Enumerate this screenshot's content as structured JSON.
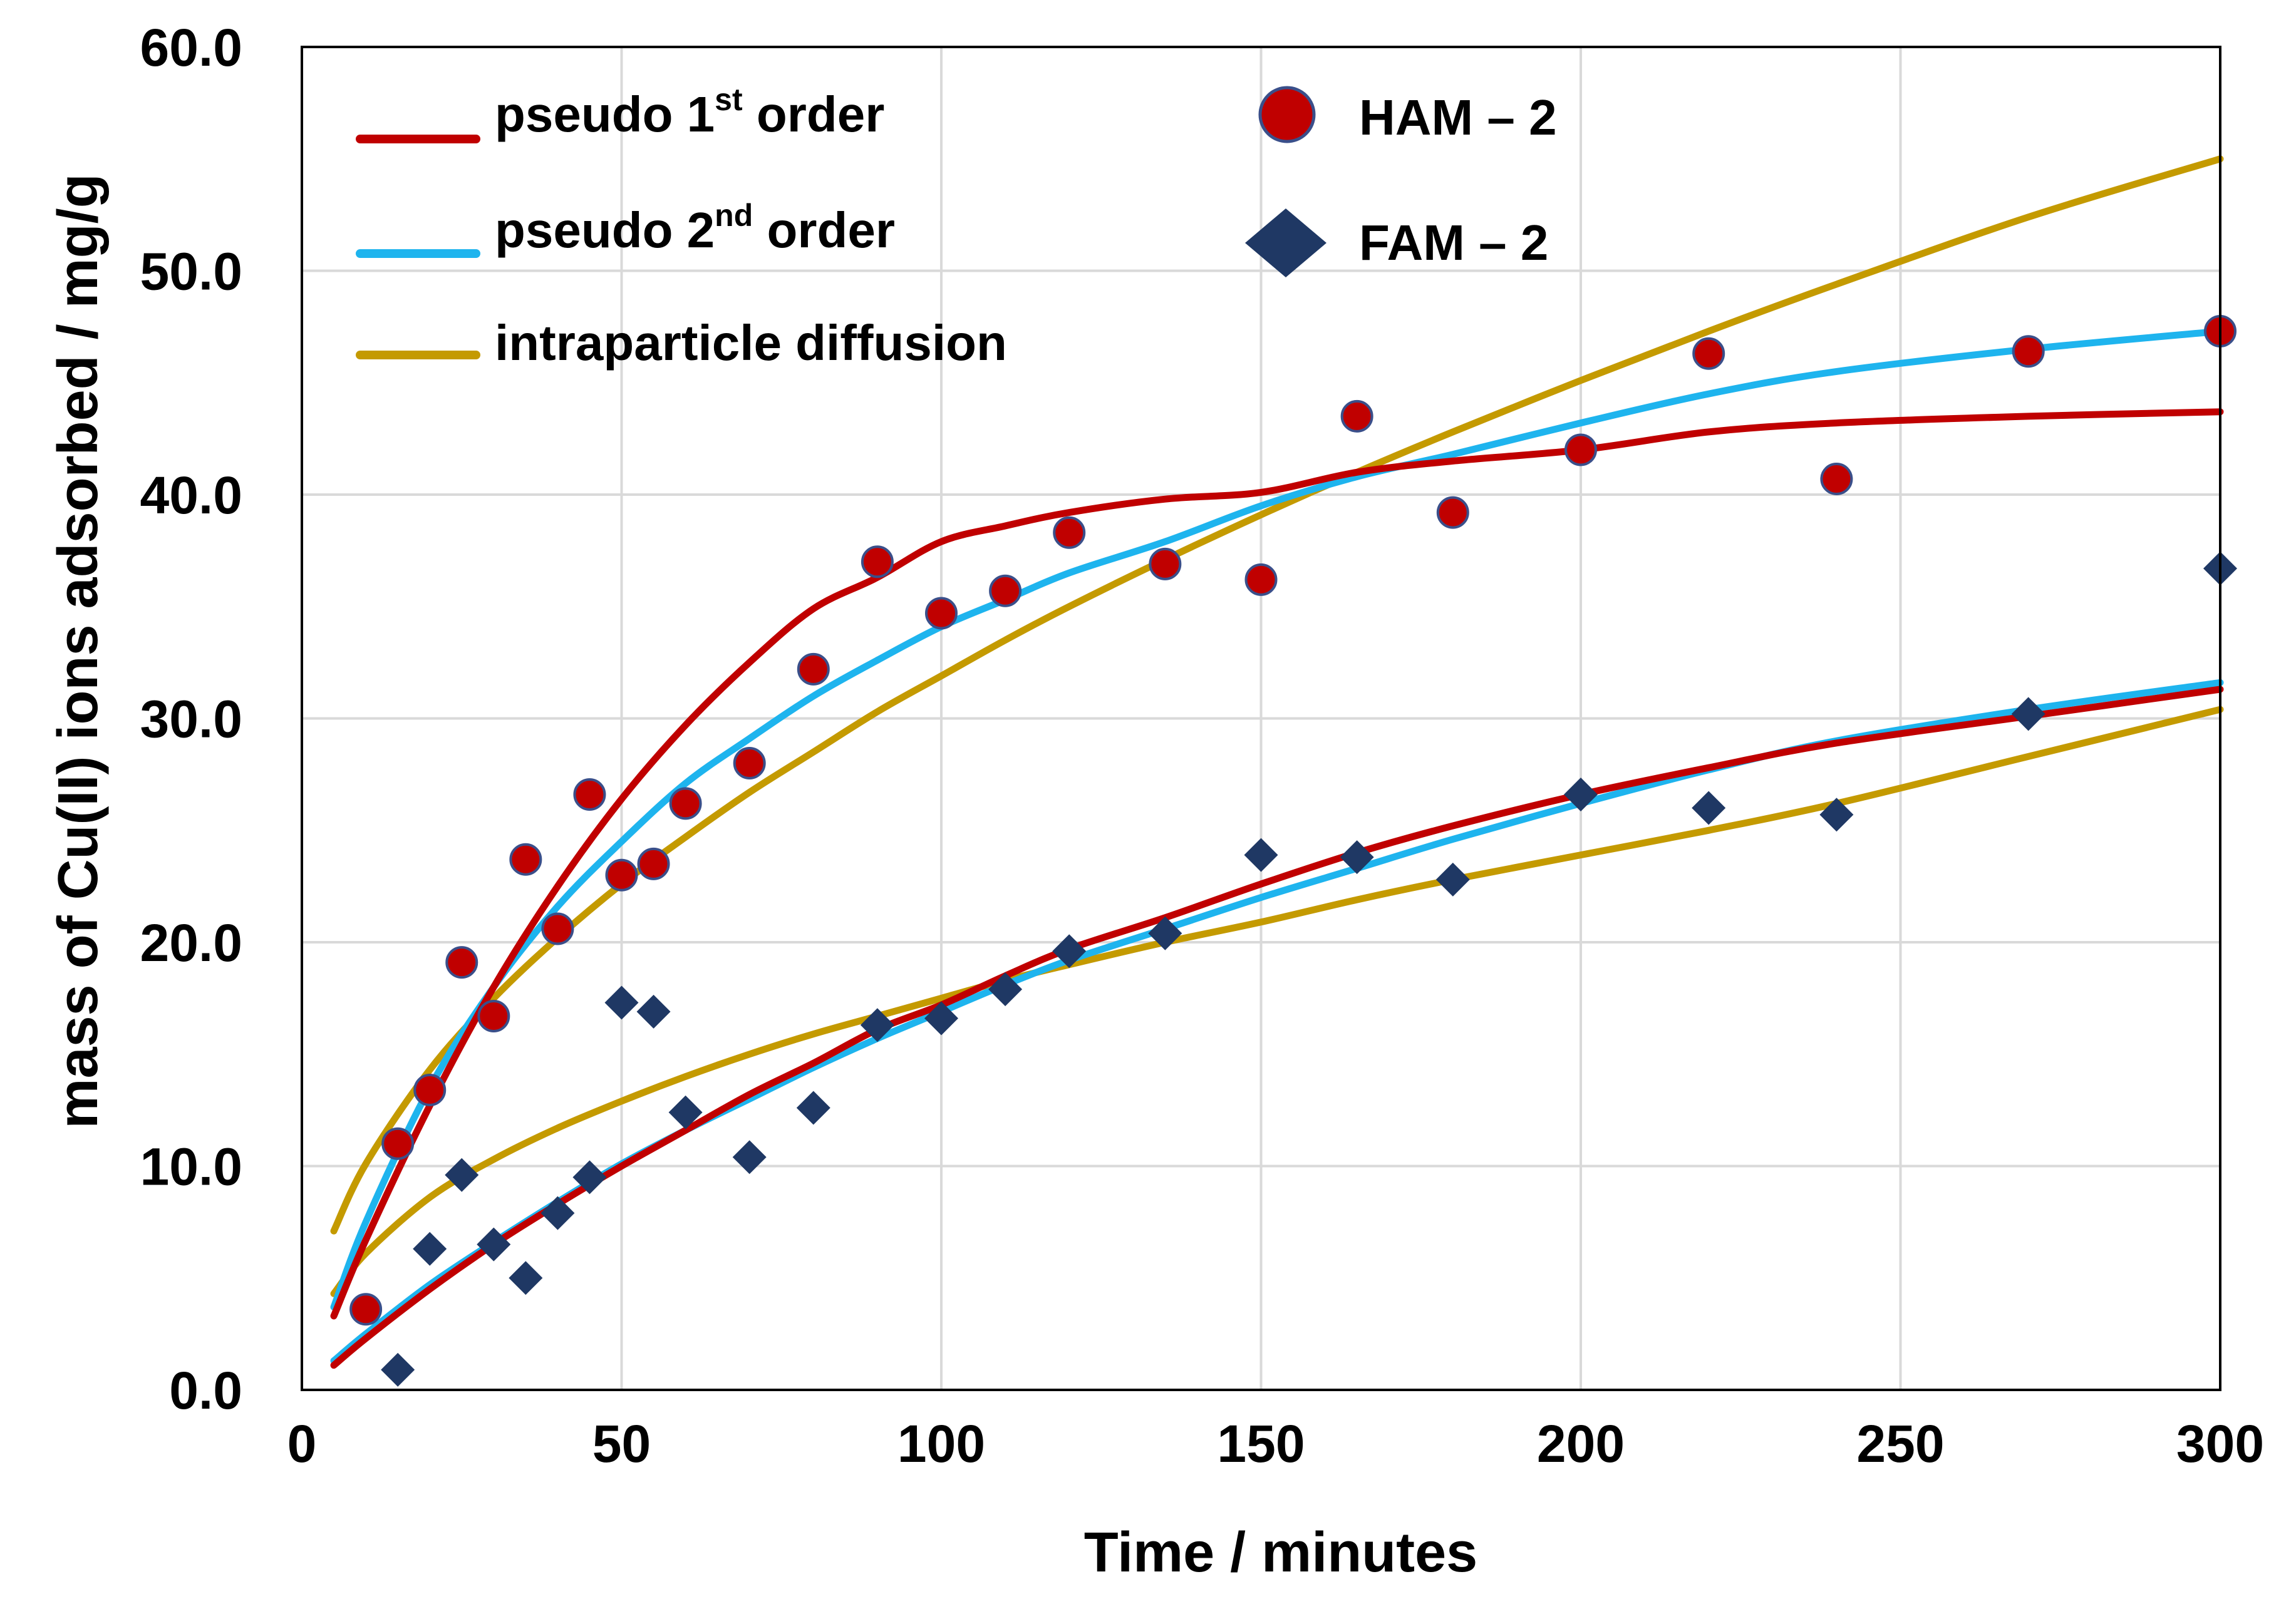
{
  "chart_data": {
    "type": "scatter",
    "title": "",
    "xlabel": "Time / minutes",
    "ylabel": "mass of Cu(II) ions adsorbed / mg/g",
    "xlim": [
      0,
      300
    ],
    "ylim": [
      0,
      60
    ],
    "x_ticks": [
      "0",
      "50",
      "100",
      "150",
      "200",
      "250",
      "300"
    ],
    "y_ticks": [
      "0.0",
      "10.0",
      "20.0",
      "30.0",
      "40.0",
      "50.0",
      "60.0"
    ],
    "grid": true,
    "legend_position": "top-left",
    "colors": {
      "pseudo_first": "#C00000",
      "pseudo_second": "#1EB4EE",
      "intraparticle": "#C49A00",
      "ham_fill": "#C00000",
      "ham_edge": "#3A4F8A",
      "fam_fill": "#1F3864",
      "grid": "#D9D9D9",
      "frame": "#000000"
    },
    "legend": {
      "pseudo_first": {
        "prefix": "pseudo 1",
        "sup": "st",
        "suffix": " order"
      },
      "pseudo_second": {
        "prefix": "pseudo 2",
        "sup": "nd",
        "suffix": " order"
      },
      "intraparticle": {
        "label": "intraparticle diffusion"
      },
      "ham": {
        "label": "HAM – 2"
      },
      "fam": {
        "label": "FAM – 2"
      }
    },
    "scatter_series": [
      {
        "name": "HAM – 2",
        "marker": "circle",
        "x": [
          10,
          15,
          20,
          25,
          30,
          35,
          40,
          45,
          50,
          55,
          60,
          70,
          80,
          90,
          100,
          110,
          120,
          135,
          150,
          165,
          180,
          200,
          220,
          240,
          270,
          300
        ],
        "y": [
          3.6,
          11.0,
          13.4,
          19.1,
          16.7,
          23.7,
          20.6,
          26.6,
          23.0,
          23.5,
          26.2,
          28.0,
          32.2,
          37.0,
          34.7,
          35.7,
          38.3,
          36.9,
          36.2,
          43.5,
          39.2,
          42.0,
          46.3,
          40.7,
          46.4,
          47.3
        ]
      },
      {
        "name": "FAM – 2",
        "marker": "diamond",
        "x": [
          15,
          20,
          25,
          30,
          35,
          40,
          45,
          50,
          55,
          60,
          70,
          80,
          90,
          100,
          110,
          120,
          135,
          150,
          165,
          180,
          200,
          220,
          240,
          270,
          300
        ],
        "y": [
          0.9,
          6.3,
          9.6,
          6.5,
          5.0,
          7.9,
          9.5,
          17.3,
          16.9,
          12.4,
          10.4,
          12.6,
          16.3,
          16.6,
          17.9,
          19.6,
          20.4,
          23.9,
          23.8,
          22.8,
          26.6,
          26.0,
          25.7,
          30.2,
          36.7
        ]
      }
    ],
    "model_curves": [
      {
        "name": "pseudo 1st order (HAM – 2)",
        "model": "pseudo_first",
        "x": [
          5,
          10,
          20,
          30,
          40,
          50,
          60,
          70,
          80,
          90,
          100,
          110,
          120,
          135,
          150,
          165,
          180,
          200,
          220,
          240,
          270,
          300
        ],
        "y": [
          3.3,
          6.7,
          12.7,
          18.0,
          22.5,
          26.4,
          29.7,
          32.5,
          34.9,
          36.3,
          37.9,
          38.6,
          39.2,
          39.8,
          40.1,
          41.0,
          41.5,
          42.0,
          42.8,
          43.2,
          43.5,
          43.7
        ]
      },
      {
        "name": "pseudo 2nd order (HAM – 2)",
        "model": "pseudo_second",
        "x": [
          5,
          10,
          20,
          30,
          40,
          50,
          60,
          70,
          80,
          90,
          100,
          110,
          120,
          135,
          150,
          165,
          180,
          200,
          220,
          240,
          270,
          300
        ],
        "y": [
          3.7,
          7.5,
          13.5,
          18.0,
          21.6,
          24.5,
          27.1,
          29.1,
          31.0,
          32.6,
          34.1,
          35.3,
          36.5,
          37.9,
          39.5,
          40.8,
          41.8,
          43.2,
          44.5,
          45.5,
          46.5,
          47.3
        ]
      },
      {
        "name": "intraparticle diffusion (HAM – 2)",
        "model": "intraparticle",
        "x": [
          5,
          10,
          20,
          30,
          40,
          50,
          60,
          70,
          80,
          90,
          100,
          110,
          120,
          135,
          150,
          165,
          180,
          200,
          220,
          240,
          270,
          300
        ],
        "y": [
          7.1,
          10.1,
          14.3,
          17.5,
          20.2,
          22.6,
          24.7,
          26.7,
          28.5,
          30.3,
          31.9,
          33.5,
          35.0,
          37.1,
          39.1,
          41.0,
          42.8,
          45.1,
          47.3,
          49.4,
          52.4,
          55.0
        ]
      },
      {
        "name": "pseudo 1st order (FAM – 2)",
        "model": "pseudo_first",
        "x": [
          5,
          10,
          20,
          30,
          40,
          50,
          60,
          70,
          80,
          90,
          100,
          110,
          120,
          135,
          150,
          165,
          180,
          200,
          220,
          240,
          270,
          300
        ],
        "y": [
          1.1,
          2.3,
          4.5,
          6.5,
          8.3,
          10.0,
          11.6,
          13.2,
          14.6,
          16.1,
          17.2,
          18.5,
          19.7,
          21.1,
          22.6,
          24.0,
          25.2,
          26.6,
          27.8,
          28.9,
          30.1,
          31.3
        ]
      },
      {
        "name": "pseudo 2nd order (FAM – 2)",
        "model": "pseudo_second",
        "x": [
          5,
          10,
          20,
          30,
          40,
          50,
          60,
          70,
          80,
          90,
          100,
          110,
          120,
          135,
          150,
          165,
          180,
          200,
          220,
          240,
          270,
          300
        ],
        "y": [
          1.3,
          2.5,
          4.7,
          6.6,
          8.4,
          10.1,
          11.6,
          13.0,
          14.4,
          15.7,
          16.9,
          18.1,
          19.2,
          20.6,
          22.0,
          23.3,
          24.6,
          26.2,
          27.7,
          29.0,
          30.4,
          31.6
        ]
      },
      {
        "name": "intraparticle diffusion (FAM – 2)",
        "model": "intraparticle",
        "x": [
          5,
          10,
          20,
          30,
          40,
          50,
          60,
          70,
          80,
          90,
          100,
          110,
          120,
          135,
          150,
          165,
          180,
          200,
          220,
          240,
          270,
          300
        ],
        "y": [
          4.3,
          6.1,
          8.6,
          10.3,
          11.7,
          12.9,
          14.0,
          15.0,
          15.9,
          16.7,
          17.5,
          18.3,
          19.0,
          20.0,
          20.9,
          21.9,
          22.8,
          23.9,
          25.0,
          26.2,
          28.3,
          30.4
        ]
      }
    ]
  }
}
